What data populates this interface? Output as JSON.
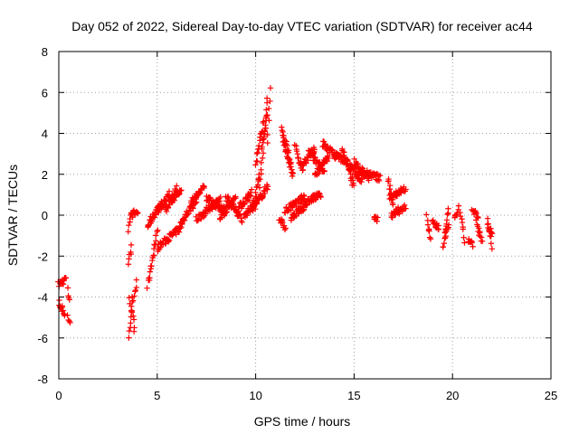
{
  "chart_data": {
    "type": "scatter",
    "title": "Day 052 of 2022, Sidereal Day-to-day VTEC variation (SDTVAR) for receiver ac44",
    "xlabel": "GPS time / hours",
    "ylabel": "SDTVAR / TECUs",
    "xlim": [
      0,
      25
    ],
    "ylim": [
      -8,
      8
    ],
    "xticks": [
      0,
      5,
      10,
      15,
      20,
      25
    ],
    "xtick_labels": [
      "0",
      "5",
      "10",
      "15",
      "20",
      "25"
    ],
    "yticks": [
      -8,
      -6,
      -4,
      -2,
      0,
      2,
      4,
      6,
      8
    ],
    "ytick_labels": [
      "-8",
      "-6",
      "-4",
      "-2",
      "0",
      "2",
      "4",
      "6",
      "8"
    ],
    "grid": true,
    "marker": "plus",
    "color": "#ff0000",
    "series": [
      {
        "name": "SDTVAR",
        "segments": [
          {
            "x": [
              0.0,
              0.35
            ],
            "y": [
              -3.4,
              -3.1
            ]
          },
          {
            "x": [
              0.0,
              0.3
            ],
            "y": [
              -4.3,
              -4.8
            ]
          },
          {
            "x": [
              0.45,
              0.55
            ],
            "y": [
              -3.7,
              -4.1
            ]
          },
          {
            "x": [
              0.45,
              0.55
            ],
            "y": [
              -4.9,
              -5.3
            ]
          },
          {
            "x": [
              3.55,
              3.75
            ],
            "y": [
              -6.0,
              -4.1
            ]
          },
          {
            "x": [
              3.6,
              3.85
            ],
            "y": [
              -4.0,
              -5.6
            ]
          },
          {
            "x": [
              3.8,
              3.95
            ],
            "y": [
              -4.0,
              -3.3
            ]
          },
          {
            "x": [
              3.55,
              3.7
            ],
            "y": [
              -0.8,
              0.0
            ]
          },
          {
            "x": [
              3.55,
              3.7
            ],
            "y": [
              -2.3,
              -1.6
            ]
          },
          {
            "x": [
              3.7,
              4.0
            ],
            "y": [
              0.05,
              0.15
            ]
          },
          {
            "x": [
              4.5,
              5.0
            ],
            "y": [
              -3.5,
              -0.8
            ]
          },
          {
            "x": [
              5.0,
              6.2
            ],
            "y": [
              -1.6,
              -0.6
            ]
          },
          {
            "x": [
              4.5,
              5.2
            ],
            "y": [
              -0.5,
              0.6
            ]
          },
          {
            "x": [
              5.0,
              5.6
            ],
            "y": [
              0.2,
              1.0
            ]
          },
          {
            "x": [
              5.4,
              6.0
            ],
            "y": [
              0.2,
              1.3
            ]
          },
          {
            "x": [
              5.6,
              6.2
            ],
            "y": [
              0.6,
              1.2
            ]
          },
          {
            "x": [
              6.2,
              7.0
            ],
            "y": [
              -0.4,
              0.8
            ]
          },
          {
            "x": [
              6.7,
              7.4
            ],
            "y": [
              0.6,
              1.4
            ]
          },
          {
            "x": [
              7.0,
              8.2
            ],
            "y": [
              -0.2,
              0.8
            ]
          },
          {
            "x": [
              7.5,
              8.5
            ],
            "y": [
              0.8,
              0.2
            ]
          },
          {
            "x": [
              8.2,
              9.0
            ],
            "y": [
              -0.1,
              0.9
            ]
          },
          {
            "x": [
              8.5,
              9.3
            ],
            "y": [
              0.9,
              -0.2
            ]
          },
          {
            "x": [
              9.0,
              9.8
            ],
            "y": [
              0.2,
              1.1
            ]
          },
          {
            "x": [
              9.4,
              10.1
            ],
            "y": [
              -0.1,
              0.8
            ]
          },
          {
            "x": [
              9.8,
              10.6
            ],
            "y": [
              0.2,
              1.4
            ]
          },
          {
            "x": [
              9.9,
              10.2
            ],
            "y": [
              0.6,
              2.0
            ]
          },
          {
            "x": [
              10.0,
              10.4
            ],
            "y": [
              2.5,
              4.5
            ]
          },
          {
            "x": [
              10.2,
              10.6
            ],
            "y": [
              1.5,
              5.6
            ]
          },
          {
            "x": [
              10.3,
              10.6
            ],
            "y": [
              3.2,
              5.0
            ]
          },
          {
            "x": [
              10.6,
              10.75
            ],
            "y": [
              3.5,
              6.3
            ]
          },
          {
            "x": [
              11.2,
              11.5
            ],
            "y": [
              -0.2,
              -0.6
            ]
          },
          {
            "x": [
              11.3,
              11.8
            ],
            "y": [
              4.2,
              2.6
            ]
          },
          {
            "x": [
              11.4,
              11.9
            ],
            "y": [
              3.6,
              1.9
            ]
          },
          {
            "x": [
              11.5,
              12.5
            ],
            "y": [
              0.2,
              0.9
            ]
          },
          {
            "x": [
              11.8,
              12.5
            ],
            "y": [
              -0.1,
              0.4
            ]
          },
          {
            "x": [
              12.0,
              12.4
            ],
            "y": [
              3.3,
              2.2
            ]
          },
          {
            "x": [
              12.4,
              13.0
            ],
            "y": [
              2.5,
              3.2
            ]
          },
          {
            "x": [
              12.5,
              13.3
            ],
            "y": [
              0.6,
              1.0
            ]
          },
          {
            "x": [
              12.7,
              13.5
            ],
            "y": [
              3.1,
              2.1
            ]
          },
          {
            "x": [
              13.0,
              13.7
            ],
            "y": [
              2.0,
              2.8
            ]
          },
          {
            "x": [
              13.4,
              14.2
            ],
            "y": [
              3.5,
              2.8
            ]
          },
          {
            "x": [
              14.0,
              14.6
            ],
            "y": [
              3.0,
              2.6
            ]
          },
          {
            "x": [
              14.4,
              15.0
            ],
            "y": [
              3.2,
              1.4
            ]
          },
          {
            "x": [
              14.7,
              15.4
            ],
            "y": [
              2.6,
              1.6
            ]
          },
          {
            "x": [
              15.0,
              15.8
            ],
            "y": [
              2.6,
              1.8
            ]
          },
          {
            "x": [
              15.3,
              16.3
            ],
            "y": [
              2.2,
              1.8
            ]
          },
          {
            "x": [
              16.0,
              16.2
            ],
            "y": [
              -0.1,
              -0.2
            ]
          },
          {
            "x": [
              16.7,
              17.0
            ],
            "y": [
              1.7,
              0.6
            ]
          },
          {
            "x": [
              16.8,
              17.6
            ],
            "y": [
              0.9,
              1.3
            ]
          },
          {
            "x": [
              16.9,
              17.6
            ],
            "y": [
              0.0,
              0.4
            ]
          },
          {
            "x": [
              18.7,
              18.9
            ],
            "y": [
              -0.1,
              -1.2
            ]
          },
          {
            "x": [
              19.0,
              19.3
            ],
            "y": [
              -0.4,
              -0.6
            ]
          },
          {
            "x": [
              19.5,
              19.8
            ],
            "y": [
              -1.6,
              0.2
            ]
          },
          {
            "x": [
              19.6,
              19.8
            ],
            "y": [
              -1.0,
              -0.6
            ]
          },
          {
            "x": [
              20.1,
              20.3
            ],
            "y": [
              -0.2,
              0.4
            ]
          },
          {
            "x": [
              20.4,
              20.6
            ],
            "y": [
              0.0,
              -1.2
            ]
          },
          {
            "x": [
              20.8,
              21.0
            ],
            "y": [
              -1.2,
              -1.4
            ]
          },
          {
            "x": [
              21.0,
              21.3
            ],
            "y": [
              0.2,
              -0.1
            ]
          },
          {
            "x": [
              21.2,
              21.5
            ],
            "y": [
              -0.4,
              -1.3
            ]
          },
          {
            "x": [
              21.8,
              22.0
            ],
            "y": [
              -0.3,
              -1.5
            ]
          },
          {
            "x": [
              21.8,
              22.0
            ],
            "y": [
              -0.5,
              -0.8
            ]
          }
        ]
      }
    ]
  }
}
